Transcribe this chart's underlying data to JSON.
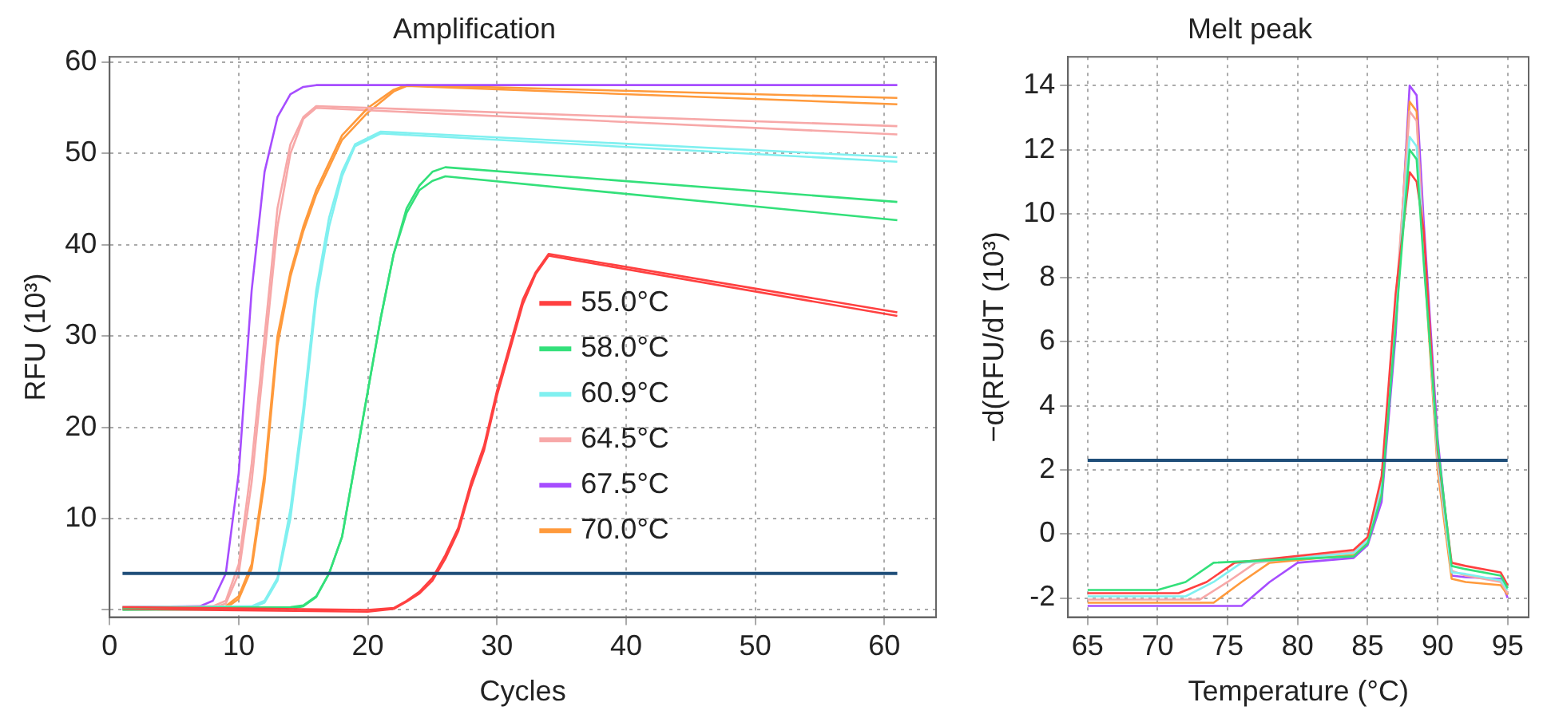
{
  "chart_data": [
    {
      "type": "line",
      "title": "Amplification",
      "xlabel": "Cycles",
      "ylabel": "RFU (10³)",
      "xlim": [
        0,
        64
      ],
      "xticks": [
        0,
        10,
        20,
        30,
        40,
        50,
        60
      ],
      "ylim": [
        -0.8,
        60.6
      ],
      "yticks": [
        {
          "value": 0,
          "label": null
        },
        10,
        20,
        30,
        40,
        50,
        60
      ],
      "grid": true,
      "legend": "center right",
      "marker": "none",
      "ref_lines": [
        {
          "axis": "y",
          "value": 4,
          "color": "#1f4e79"
        }
      ],
      "series": [
        {
          "name": "55.0°C",
          "color": "#ff4040",
          "x": [
            1,
            20,
            22,
            23,
            24,
            25,
            26,
            27,
            28,
            29,
            30,
            31,
            32,
            33,
            34,
            61
          ],
          "values": [
            0.3,
            0,
            0.2,
            1,
            2,
            3.5,
            6,
            9,
            14,
            18,
            24,
            29,
            34,
            37,
            39,
            32.6
          ]
        },
        {
          "name": "58.0°C",
          "color": "#33e07a",
          "x": [
            1,
            14,
            15,
            16,
            17,
            18,
            19,
            20,
            21,
            22,
            23,
            24,
            25,
            26,
            61
          ],
          "values": [
            0.2,
            0.3,
            0.5,
            1.5,
            4,
            8,
            16,
            24,
            32,
            39,
            44,
            46.5,
            48,
            48.5,
            44.7
          ]
        },
        {
          "name": "60.9°C",
          "color": "#80f0f0",
          "x": [
            1,
            11,
            12,
            13,
            14,
            15,
            16,
            17,
            18,
            19,
            21,
            61
          ],
          "values": [
            0.3,
            0.4,
            1,
            3.5,
            11,
            22,
            35,
            43,
            48,
            51,
            52.4,
            49.6
          ]
        },
        {
          "name": "64.5°C",
          "color": "#f7a8a8",
          "x": [
            1,
            8,
            9,
            10,
            11,
            12,
            13,
            14,
            15,
            16,
            61
          ],
          "values": [
            0.3,
            0.4,
            1,
            5,
            16,
            30,
            44,
            51,
            54,
            55.2,
            53
          ]
        },
        {
          "name": "67.5°C",
          "color": "#a64dff",
          "x": [
            1,
            7,
            8,
            9,
            10,
            11,
            12,
            13,
            14,
            15,
            16,
            61
          ],
          "values": [
            0.3,
            0.4,
            1,
            4,
            15,
            35,
            48,
            54,
            56.5,
            57.3,
            57.5,
            57.5
          ]
        },
        {
          "name": "70.0°C",
          "color": "#ff9a3c",
          "x": [
            1,
            9,
            10,
            11,
            12,
            13,
            14,
            15,
            16,
            18,
            20,
            22,
            23,
            61
          ],
          "values": [
            0.3,
            0.4,
            1.5,
            5,
            15,
            30,
            37,
            42,
            46,
            52,
            55,
            57,
            57.5,
            56.1
          ]
        },
        {
          "color": "#ff4040",
          "x": [
            1,
            20,
            22,
            23,
            24,
            25,
            26,
            27,
            28,
            29,
            30,
            31,
            32,
            33,
            34,
            61
          ],
          "values": [
            0.1,
            -0.2,
            0.1,
            0.9,
            1.8,
            3.2,
            5.6,
            8.6,
            13.5,
            17.5,
            23.5,
            28.5,
            33.5,
            36.8,
            38.8,
            32.2
          ]
        },
        {
          "color": "#33e07a",
          "x": [
            1,
            14,
            15,
            16,
            17,
            18,
            19,
            20,
            21,
            22,
            23,
            24,
            25,
            26,
            61
          ],
          "values": [
            0,
            0.1,
            0.4,
            1.4,
            4,
            8,
            16,
            24,
            32,
            39,
            43.5,
            46,
            47,
            47.5,
            42.7
          ]
        },
        {
          "color": "#80f0f0",
          "x": [
            1,
            11,
            12,
            13,
            14,
            15,
            16,
            17,
            18,
            19,
            21,
            61
          ],
          "values": [
            0.1,
            0.2,
            0.8,
            3.2,
            10,
            21,
            34,
            42,
            47.5,
            50.8,
            52.2,
            49.1
          ]
        },
        {
          "color": "#f7a8a8",
          "x": [
            1,
            8,
            9,
            10,
            11,
            12,
            13,
            14,
            15,
            16,
            61
          ],
          "values": [
            0.1,
            0.2,
            0.7,
            4,
            14,
            28,
            42,
            50,
            53.8,
            55,
            52.1
          ]
        },
        {
          "color": "#ff9a3c",
          "x": [
            1,
            9,
            10,
            11,
            12,
            13,
            14,
            15,
            16,
            18,
            20,
            22,
            23,
            61
          ],
          "values": [
            0.1,
            0.2,
            1.2,
            4.5,
            14,
            29,
            36.5,
            41.5,
            45.5,
            51.5,
            54.5,
            56.8,
            57.4,
            55.4
          ]
        }
      ]
    },
    {
      "type": "line",
      "title": "Melt peak",
      "xlabel": "Temperature (°C)",
      "ylabel": "−d(RFU/dT (10³)",
      "xlim": [
        63.6,
        96.5
      ],
      "xticks": [
        65,
        70,
        75,
        80,
        85,
        90,
        95
      ],
      "ylim": [
        -2.6,
        14.9
      ],
      "yticks": [
        -2,
        0,
        2,
        4,
        6,
        8,
        10,
        12,
        14
      ],
      "grid": true,
      "marker": "none",
      "ref_lines": [
        {
          "axis": "y",
          "value": 2.3,
          "color": "#1f4e79"
        }
      ],
      "series": [
        {
          "color": "#33e07a",
          "x": [
            65,
            70,
            72,
            74,
            84,
            85,
            86,
            87,
            88,
            88.5,
            89,
            90,
            91,
            92,
            94.5,
            95
          ],
          "values": [
            -1.75,
            -1.75,
            -1.5,
            -0.9,
            -0.7,
            -0.3,
            1.2,
            6.5,
            12,
            11.7,
            8.5,
            2.8,
            -1,
            -1.1,
            -1.3,
            -1.7
          ]
        },
        {
          "color": "#ff4040",
          "x": [
            65,
            71.5,
            73.5,
            75.5,
            84,
            85,
            86,
            87,
            88,
            88.5,
            89,
            90,
            91,
            92,
            94.5,
            95
          ],
          "values": [
            -1.85,
            -1.85,
            -1.5,
            -0.9,
            -0.5,
            -0.1,
            1.8,
            7.5,
            11.3,
            11,
            9.5,
            2.6,
            -0.9,
            -1,
            -1.2,
            -1.6
          ]
        },
        {
          "color": "#80f0f0",
          "x": [
            65,
            72,
            74,
            76,
            84,
            85,
            86,
            87,
            88,
            88.5,
            89,
            90,
            91,
            92,
            94.5,
            95
          ],
          "values": [
            -1.95,
            -1.95,
            -1.5,
            -0.9,
            -0.6,
            -0.2,
            1.5,
            7,
            12.4,
            12.1,
            9,
            2.4,
            -1.2,
            -1.25,
            -1.45,
            -1.75
          ]
        },
        {
          "color": "#f7a8a8",
          "x": [
            65,
            73,
            75,
            77,
            84,
            85,
            86,
            87,
            88,
            88.5,
            89,
            90,
            91,
            92,
            94.5,
            95
          ],
          "values": [
            -2.05,
            -2.05,
            -1.5,
            -0.9,
            -0.55,
            -0.15,
            1.6,
            7.2,
            13.2,
            12.9,
            9.2,
            2.2,
            -1.15,
            -1.3,
            -1.5,
            -1.85
          ]
        },
        {
          "color": "#ff9a3c",
          "x": [
            65,
            74,
            76,
            78,
            84,
            85,
            86,
            87,
            88,
            88.5,
            89,
            90,
            91,
            92,
            94.5,
            95
          ],
          "values": [
            -2.15,
            -2.15,
            -1.5,
            -0.9,
            -0.65,
            -0.25,
            1.3,
            6.8,
            13.5,
            13.2,
            8.8,
            2,
            -1.4,
            -1.5,
            -1.6,
            -1.9
          ]
        },
        {
          "color": "#a64dff",
          "x": [
            65,
            76,
            78,
            80,
            84,
            85,
            86,
            87,
            88,
            88.5,
            89,
            90,
            91,
            92,
            94.5,
            95
          ],
          "values": [
            -2.25,
            -2.25,
            -1.5,
            -0.9,
            -0.75,
            -0.35,
            1,
            6.2,
            14,
            13.7,
            9.8,
            3,
            -1.3,
            -1.35,
            -1.4,
            -2
          ]
        }
      ]
    }
  ]
}
